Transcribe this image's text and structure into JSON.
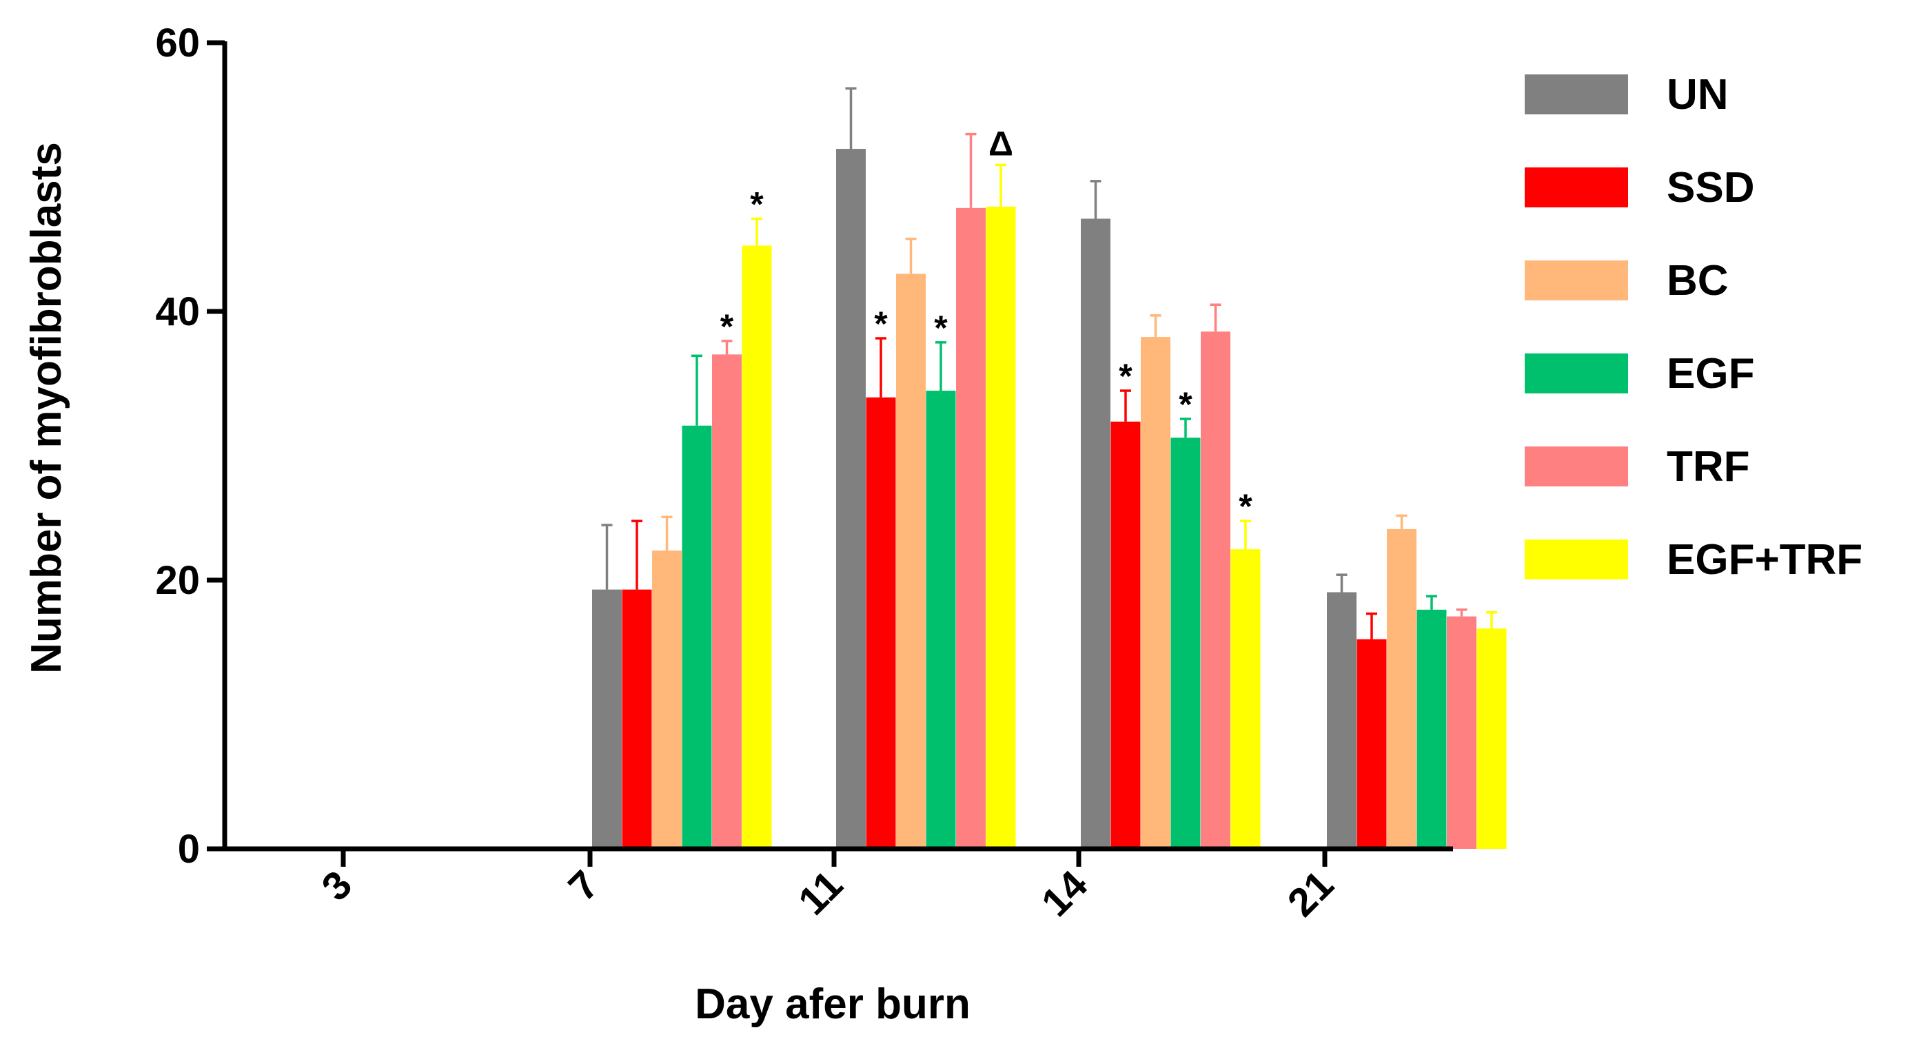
{
  "chart_data": {
    "type": "bar",
    "xlabel": "Day afer burn",
    "ylabel": "Number of myofibroblasts",
    "ylim": [
      0,
      60
    ],
    "yticks": [
      0,
      20,
      40,
      60
    ],
    "categories": [
      "3",
      "7",
      "11",
      "14",
      "21"
    ],
    "legend_position": "right",
    "grid": false,
    "series": [
      {
        "name": "UN",
        "color": "#808080",
        "values": [
          null,
          19.3,
          52.1,
          46.9,
          19.1
        ],
        "errors": [
          null,
          4.8,
          4.5,
          2.8,
          1.3
        ]
      },
      {
        "name": "SSD",
        "color": "#FF0000",
        "values": [
          null,
          19.3,
          33.6,
          31.8,
          15.6
        ],
        "errors": [
          null,
          5.1,
          4.4,
          2.3,
          1.9
        ]
      },
      {
        "name": "BC",
        "color": "#FFB87A",
        "values": [
          null,
          22.2,
          42.8,
          38.1,
          23.8
        ],
        "errors": [
          null,
          2.5,
          2.6,
          1.6,
          1.0
        ]
      },
      {
        "name": "EGF",
        "color": "#00C06E",
        "values": [
          null,
          31.5,
          34.1,
          30.6,
          17.8
        ],
        "errors": [
          null,
          5.2,
          3.6,
          1.4,
          1.0
        ]
      },
      {
        "name": "TRF",
        "color": "#FF8080",
        "values": [
          null,
          36.8,
          47.7,
          38.5,
          17.3
        ],
        "errors": [
          null,
          1.0,
          5.5,
          2.0,
          0.5
        ]
      },
      {
        "name": "EGF+TRF",
        "color": "#FFFF00",
        "values": [
          null,
          44.9,
          47.8,
          22.3,
          16.4
        ],
        "errors": [
          null,
          2.0,
          3.1,
          2.1,
          1.2
        ]
      }
    ],
    "annotations": [
      {
        "category": "7",
        "series": "TRF",
        "text": "*"
      },
      {
        "category": "7",
        "series": "EGF+TRF",
        "text": "*"
      },
      {
        "category": "11",
        "series": "SSD",
        "text": "*"
      },
      {
        "category": "11",
        "series": "EGF",
        "text": "*"
      },
      {
        "category": "11",
        "series": "EGF+TRF",
        "text": "Δ"
      },
      {
        "category": "14",
        "series": "SSD",
        "text": "*"
      },
      {
        "category": "14",
        "series": "EGF",
        "text": "*"
      },
      {
        "category": "14",
        "series": "EGF+TRF",
        "text": "*"
      }
    ]
  }
}
